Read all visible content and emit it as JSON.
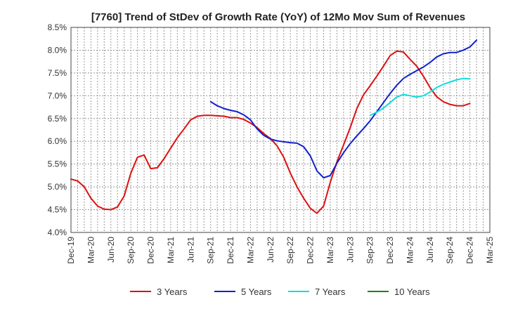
{
  "chart_data": {
    "type": "line",
    "title": "[7760]  Trend of StDev of Growth Rate (YoY) of 12Mo Mov Sum of Revenues",
    "xlabel": "",
    "ylabel": "",
    "ylim": [
      4.0,
      8.5
    ],
    "y_ticks": [
      "4.0%",
      "4.5%",
      "5.0%",
      "5.5%",
      "6.0%",
      "6.5%",
      "7.0%",
      "7.5%",
      "8.0%",
      "8.5%"
    ],
    "x_ticks": [
      "Dec-19",
      "Mar-20",
      "Jun-20",
      "Sep-20",
      "Dec-20",
      "Mar-21",
      "Jun-21",
      "Sep-21",
      "Dec-21",
      "Mar-22",
      "Jun-22",
      "Sep-22",
      "Dec-22",
      "Mar-23",
      "Jun-23",
      "Sep-23",
      "Dec-23",
      "Mar-24",
      "Jun-24",
      "Sep-24",
      "Dec-24",
      "Mar-25"
    ],
    "x_start": "Dec-19",
    "x_months": 63,
    "grid": true,
    "legend_position": "bottom",
    "series": [
      {
        "name": "3 Years",
        "color": "#dd1111",
        "start_index": 0,
        "values": [
          5.17,
          5.13,
          5.0,
          4.75,
          4.58,
          4.51,
          4.5,
          4.56,
          4.8,
          5.3,
          5.65,
          5.7,
          5.4,
          5.42,
          5.62,
          5.85,
          6.08,
          6.27,
          6.47,
          6.55,
          6.57,
          6.57,
          6.56,
          6.55,
          6.52,
          6.52,
          6.48,
          6.4,
          6.3,
          6.17,
          6.06,
          5.9,
          5.65,
          5.3,
          5.0,
          4.75,
          4.53,
          4.42,
          4.58,
          5.1,
          5.55,
          5.92,
          6.3,
          6.72,
          7.02,
          7.22,
          7.43,
          7.65,
          7.88,
          7.98,
          7.96,
          7.8,
          7.65,
          7.43,
          7.18,
          6.98,
          6.87,
          6.81,
          6.78,
          6.78,
          6.83
        ]
      },
      {
        "name": "5 Years",
        "color": "#1122cc",
        "start_index": 21,
        "values": [
          6.87,
          6.78,
          6.72,
          6.68,
          6.65,
          6.58,
          6.47,
          6.27,
          6.13,
          6.05,
          6.01,
          5.99,
          5.97,
          5.96,
          5.88,
          5.68,
          5.35,
          5.2,
          5.25,
          5.52,
          5.75,
          5.95,
          6.12,
          6.28,
          6.45,
          6.65,
          6.85,
          7.05,
          7.23,
          7.38,
          7.47,
          7.55,
          7.63,
          7.73,
          7.85,
          7.92,
          7.95,
          7.95,
          8.0,
          8.07,
          8.22
        ]
      },
      {
        "name": "7 Years",
        "color": "#11dddd",
        "start_index": 45,
        "values": [
          6.57,
          6.64,
          6.73,
          6.85,
          6.97,
          7.03,
          7.0,
          6.97,
          7.0,
          7.08,
          7.18,
          7.25,
          7.3,
          7.35,
          7.38,
          7.37
        ]
      },
      {
        "name": "10 Years",
        "color": "#118811",
        "start_index": 0,
        "values": []
      }
    ]
  }
}
